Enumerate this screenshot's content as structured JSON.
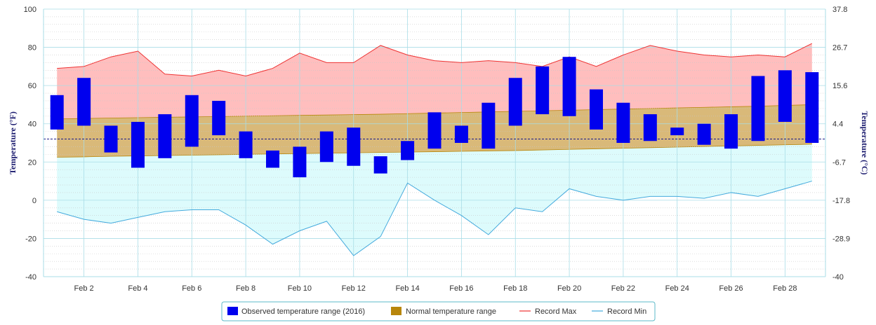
{
  "chart_data": {
    "type": "bar",
    "subtype": "floating range bars with area bands",
    "x_categories": [
      "Feb 1",
      "Feb 2",
      "Feb 3",
      "Feb 4",
      "Feb 5",
      "Feb 6",
      "Feb 7",
      "Feb 8",
      "Feb 9",
      "Feb 10",
      "Feb 11",
      "Feb 12",
      "Feb 13",
      "Feb 14",
      "Feb 15",
      "Feb 16",
      "Feb 17",
      "Feb 18",
      "Feb 19",
      "Feb 20",
      "Feb 21",
      "Feb 22",
      "Feb 23",
      "Feb 24",
      "Feb 25",
      "Feb 26",
      "Feb 27",
      "Feb 28",
      "Feb 29"
    ],
    "x_tick_labels": [
      "Feb 2",
      "Feb 4",
      "Feb 6",
      "Feb 8",
      "Feb 10",
      "Feb 12",
      "Feb 14",
      "Feb 16",
      "Feb 18",
      "Feb 20",
      "Feb 22",
      "Feb 24",
      "Feb 26",
      "Feb 28"
    ],
    "y_left": {
      "label": "Temperature (°F)",
      "range": [
        -40,
        100
      ],
      "ticks": [
        "100",
        "80",
        "60",
        "40",
        "20",
        "0",
        "-20",
        "-40"
      ]
    },
    "y_right": {
      "label": "Temperature (°C)",
      "ticks": [
        "37.8",
        "26.7",
        "15.6",
        "4.4",
        "-6.7",
        "-17.8",
        "-28.9",
        "-40"
      ]
    },
    "reference_line_f": 32,
    "series": [
      {
        "name": "Observed temperature range (2016)",
        "color": "#0000ee",
        "low": [
          37,
          39,
          25,
          17,
          22,
          28,
          34,
          22,
          17,
          12,
          20,
          18,
          14,
          21,
          27,
          30,
          27,
          39,
          45,
          44,
          37,
          30,
          31,
          34,
          29,
          27,
          31,
          41,
          30
        ],
        "high": [
          55,
          64,
          39,
          41,
          45,
          55,
          52,
          36,
          26,
          28,
          36,
          38,
          23,
          31,
          46,
          39,
          51,
          64,
          70,
          75,
          58,
          51,
          45,
          38,
          40,
          45,
          65,
          68,
          67
        ]
      },
      {
        "name": "Normal temperature range",
        "color": "#b8860b",
        "low": [
          22.5,
          22.7,
          23.0,
          23.2,
          23.4,
          23.6,
          23.8,
          24.0,
          24.2,
          24.4,
          24.6,
          24.8,
          25.0,
          25.2,
          25.4,
          25.6,
          25.8,
          26.0,
          26.3,
          26.6,
          26.9,
          27.2,
          27.5,
          27.8,
          28.1,
          28.4,
          28.7,
          29.0,
          29.3
        ],
        "high": [
          42.5,
          42.8,
          43.0,
          43.2,
          43.4,
          43.6,
          43.8,
          44.0,
          44.2,
          44.4,
          44.6,
          44.8,
          45.0,
          45.3,
          45.6,
          45.9,
          46.2,
          46.5,
          46.8,
          47.1,
          47.4,
          47.7,
          48.0,
          48.3,
          48.6,
          48.9,
          49.2,
          49.6,
          50.0
        ]
      },
      {
        "name": "Record Max",
        "color": "#ee3333",
        "values": [
          69,
          70,
          75,
          78,
          66,
          65,
          68,
          65,
          69,
          77,
          72,
          72,
          81,
          76,
          73,
          72,
          73,
          72,
          70,
          75,
          70,
          76,
          81,
          78,
          76,
          75,
          76,
          75,
          82
        ]
      },
      {
        "name": "Record Min",
        "color": "#44aadd",
        "values": [
          -6,
          -10,
          -12,
          -9,
          -6,
          -5,
          -5,
          -13,
          -23,
          -16,
          -11,
          -29,
          -19,
          9,
          0,
          -8,
          -18,
          -4,
          -6,
          6,
          2,
          0,
          2,
          2,
          1,
          4,
          2,
          6,
          10
        ]
      }
    ],
    "legend": {
      "position": "bottom-center",
      "items": [
        "Observed temperature range (2016)",
        "Normal temperature range",
        "Record Max",
        "Record Min"
      ]
    }
  }
}
